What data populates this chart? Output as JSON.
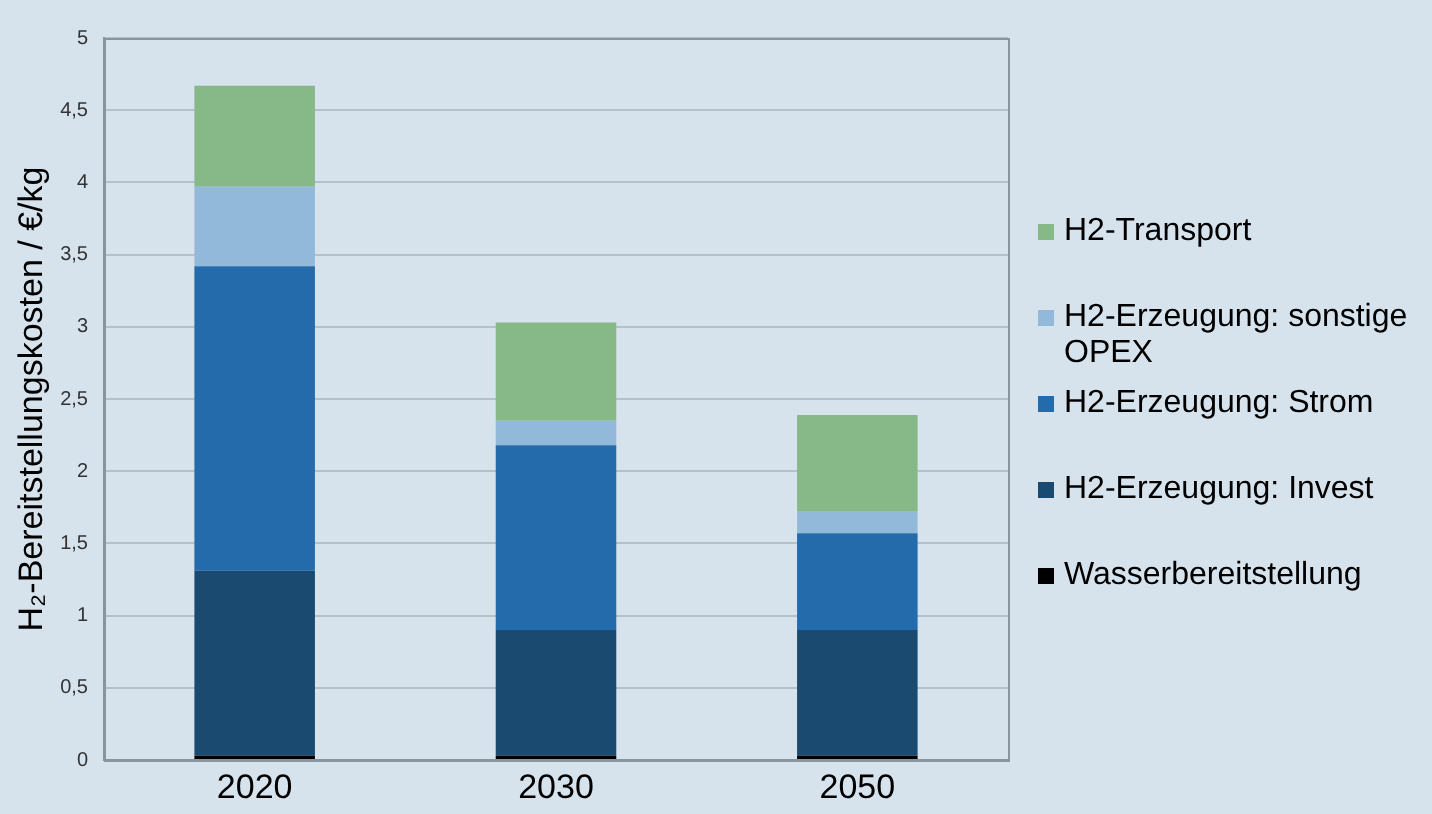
{
  "chart_data": {
    "type": "bar",
    "stacked": true,
    "ylabel": "H₂-Bereitstellungskosten / €/kg",
    "categories": [
      "2020",
      "2030",
      "2050"
    ],
    "series": [
      {
        "name": "Wasserbereitstellung",
        "color": "#000000",
        "values": [
          0.03,
          0.03,
          0.03
        ]
      },
      {
        "name": "H2-Erzeugung: Invest",
        "color": "#1b4a70",
        "values": [
          1.28,
          0.87,
          0.87
        ]
      },
      {
        "name": "H2-Erzeugung: Strom",
        "color": "#236bab",
        "values": [
          2.11,
          1.28,
          0.67
        ]
      },
      {
        "name": "H2-Erzeugung: sonstige OPEX",
        "color": "#93b9da",
        "values": [
          0.55,
          0.17,
          0.15
        ]
      },
      {
        "name": "H2-Transport",
        "color": "#86b987",
        "values": [
          0.7,
          0.68,
          0.67
        ]
      }
    ],
    "ylim": [
      0,
      5
    ],
    "yticks": [
      0,
      {
        "value": 0.5,
        "label": "0,5"
      },
      1,
      {
        "value": 1.5,
        "label": "1,5"
      },
      2,
      {
        "value": 2.5,
        "label": "2,5"
      },
      3,
      {
        "value": 3.5,
        "label": "3,5"
      },
      4,
      {
        "value": 4.5,
        "label": "4,5"
      },
      5
    ],
    "grid": "y",
    "legend": "right"
  }
}
